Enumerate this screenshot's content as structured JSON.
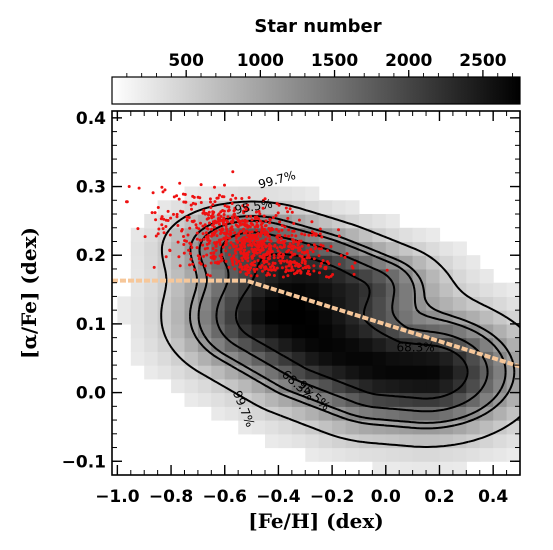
{
  "chart_data": {
    "type": "heatmap",
    "title": "",
    "xlabel": "[Fe/H] (dex)",
    "ylabel": "[α/Fe] (dex)",
    "xlim": [
      -1.02,
      0.5
    ],
    "ylim": [
      -0.12,
      0.41
    ],
    "x_ticks": [
      "−1.0",
      "−0.8",
      "−0.6",
      "−0.4",
      "−0.2",
      "0.0",
      "0.2",
      "0.4"
    ],
    "x_tick_values": [
      -1.0,
      -0.8,
      -0.6,
      -0.4,
      -0.2,
      0.0,
      0.2,
      0.4
    ],
    "y_ticks": [
      "−0.1",
      "0.0",
      "0.1",
      "0.2",
      "0.3",
      "0.4"
    ],
    "y_tick_values": [
      -0.1,
      0.0,
      0.1,
      0.2,
      0.3,
      0.4
    ],
    "colorbar": {
      "title": "Star number",
      "range": [
        0,
        2750
      ],
      "ticks": [
        "500",
        "1000",
        "1500",
        "2000",
        "2500"
      ],
      "tick_values": [
        500,
        1000,
        1500,
        2000,
        2500
      ]
    },
    "density_ridges": [
      {
        "type": "high-alpha",
        "points": [
          [
            -0.5,
            0.215
          ],
          [
            -0.3,
            0.19
          ],
          [
            -0.1,
            0.16
          ]
        ],
        "sx": 0.17,
        "sy": 0.033,
        "peak": 1500
      },
      {
        "type": "low-alpha",
        "points": [
          [
            -0.4,
            0.11
          ],
          [
            -0.2,
            0.065
          ],
          [
            0.0,
            0.035
          ],
          [
            0.15,
            0.03
          ]
        ],
        "sx": 0.2,
        "sy": 0.05,
        "peak": 2700
      }
    ],
    "separation_line": {
      "x": [
        -1.02,
        -0.52,
        0.5
      ],
      "y": [
        0.163,
        0.163,
        0.038
      ],
      "color": "#f6c79a"
    },
    "red_points_color": "#ee1111",
    "contour_labels": [
      "99.7%",
      "95.5%",
      "68.3%",
      "68.3%",
      "95.5%",
      "99.7%"
    ]
  }
}
